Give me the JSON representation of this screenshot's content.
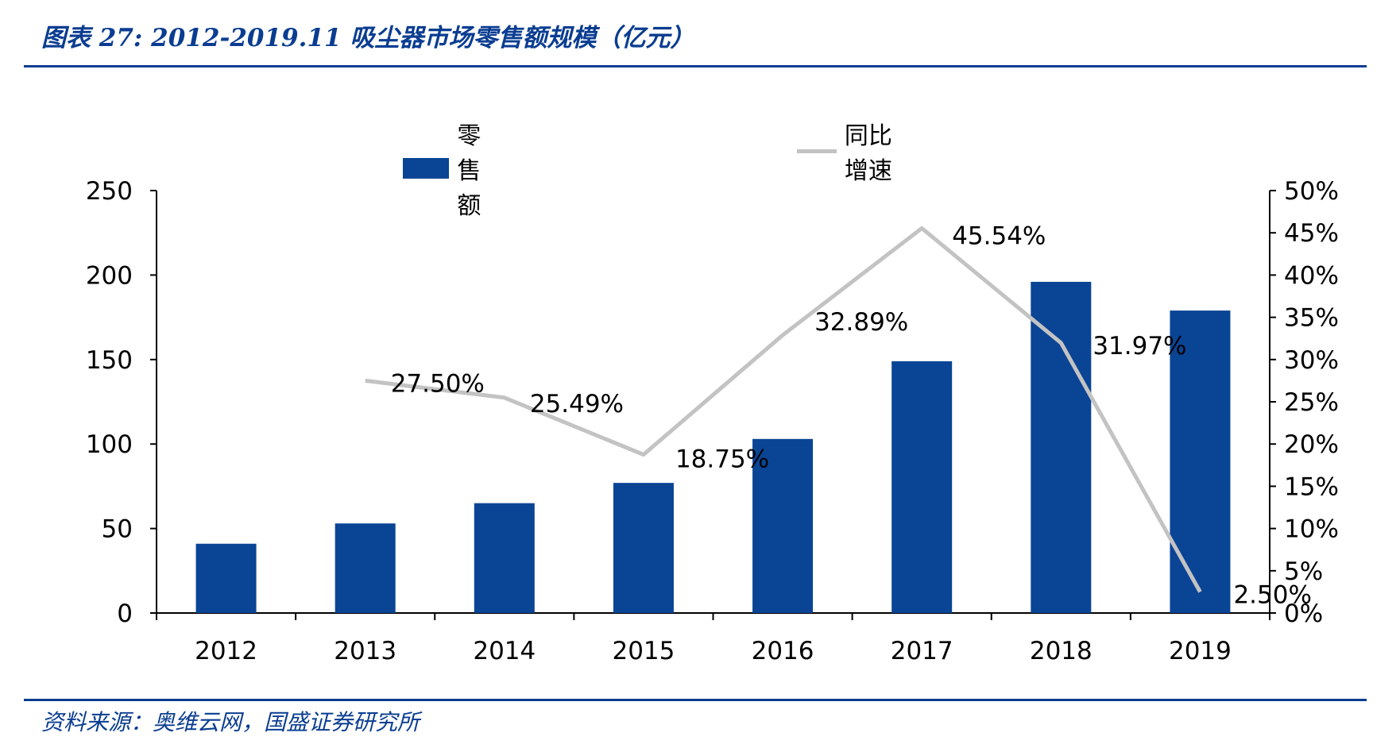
{
  "title": "图表 27:  2012-2019.11 吸尘器市场零售额规模（亿元）",
  "source": "资料来源：奥维云网，国盛证券研究所",
  "legend": {
    "bar_label": "零售额",
    "line_label": "同比增速"
  },
  "colors": {
    "accent": "#0a3d91",
    "bar": "#0a4495",
    "line": "#c3c3c3",
    "axis": "#000000"
  },
  "chart_data": {
    "type": "bar",
    "categories": [
      "2012",
      "2013",
      "2014",
      "2015",
      "2016",
      "2017",
      "2018",
      "2019"
    ],
    "series": [
      {
        "name": "零售额",
        "type": "bar",
        "axis": "left",
        "values": [
          41,
          53,
          65,
          77,
          103,
          149,
          196,
          179
        ]
      },
      {
        "name": "同比增速",
        "type": "line",
        "axis": "right",
        "values": [
          null,
          27.5,
          25.49,
          18.75,
          32.89,
          45.54,
          31.97,
          2.5
        ]
      }
    ],
    "line_labels": [
      "",
      "27.50%",
      "25.49%",
      "18.75%",
      "32.89%",
      "45.54%",
      "31.97%",
      "2.50%"
    ],
    "y_left": {
      "min": 0,
      "max": 250,
      "ticks": [
        "0",
        "50",
        "100",
        "150",
        "200",
        "250"
      ]
    },
    "y_right": {
      "min": 0,
      "max": 50,
      "ticks": [
        "0%",
        "5%",
        "10%",
        "15%",
        "20%",
        "25%",
        "30%",
        "35%",
        "40%",
        "45%",
        "50%"
      ]
    },
    "legend_position": "top",
    "grid": false
  }
}
